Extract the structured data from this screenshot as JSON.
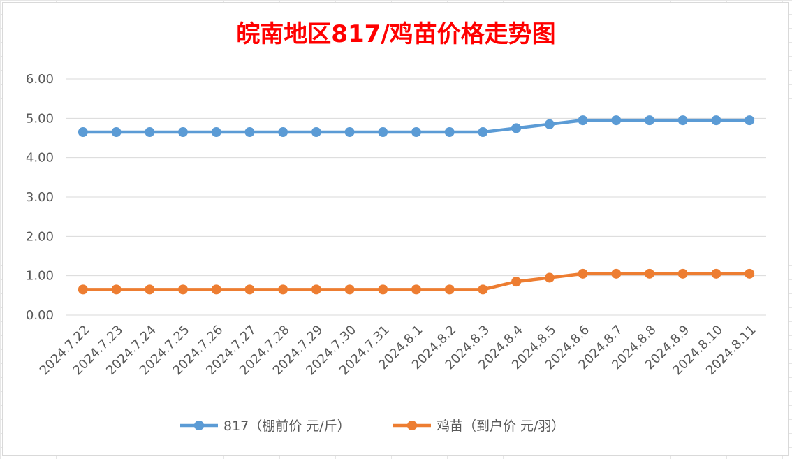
{
  "chart_data": {
    "type": "line",
    "title": "皖南地区817/鸡苗价格走势图",
    "categories": [
      "2024.7.22",
      "2024.7.23",
      "2024.7.24",
      "2024.7.25",
      "2024.7.26",
      "2024.7.27",
      "2024.7.28",
      "2024.7.29",
      "2024.7.30",
      "2024.7.31",
      "2024.8.1",
      "2024.8.2",
      "2024.8.3",
      "2024.8.4",
      "2024.8.5",
      "2024.8.6",
      "2024.8.7",
      "2024.8.8",
      "2024.8.9",
      "2024.8.10",
      "2024.8.11"
    ],
    "series": [
      {
        "name": "817（棚前价 元/斤）",
        "color": "#5b9bd5",
        "values": [
          4.65,
          4.65,
          4.65,
          4.65,
          4.65,
          4.65,
          4.65,
          4.65,
          4.65,
          4.65,
          4.65,
          4.65,
          4.65,
          4.75,
          4.85,
          4.95,
          4.95,
          4.95,
          4.95,
          4.95,
          4.95
        ]
      },
      {
        "name": "鸡苗（到户价 元/羽）",
        "color": "#ed7d31",
        "values": [
          0.65,
          0.65,
          0.65,
          0.65,
          0.65,
          0.65,
          0.65,
          0.65,
          0.65,
          0.65,
          0.65,
          0.65,
          0.65,
          0.85,
          0.95,
          1.05,
          1.05,
          1.05,
          1.05,
          1.05,
          1.05
        ]
      }
    ],
    "ylim": [
      0,
      6
    ],
    "yticks": [
      "0.00",
      "1.00",
      "2.00",
      "3.00",
      "4.00",
      "5.00",
      "6.00"
    ],
    "grid": true,
    "legend_position": "bottom"
  }
}
